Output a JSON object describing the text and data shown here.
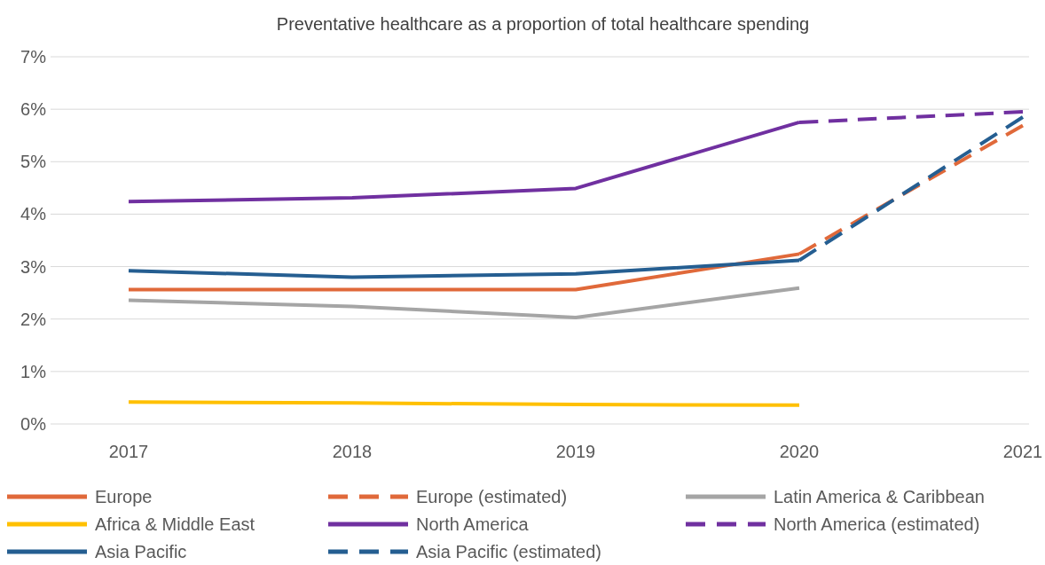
{
  "chart_data": {
    "type": "line",
    "title": "Preventative healthcare as a proportion of total healthcare spending",
    "categories": [
      "2017",
      "2018",
      "2019",
      "2020",
      "2021"
    ],
    "ylim": [
      0,
      7
    ],
    "yticks": [
      {
        "value": 0,
        "label": "0%"
      },
      {
        "value": 1,
        "label": "1%"
      },
      {
        "value": 2,
        "label": "2%"
      },
      {
        "value": 3,
        "label": "3%"
      },
      {
        "value": 4,
        "label": "4%"
      },
      {
        "value": 5,
        "label": "5%"
      },
      {
        "value": 6,
        "label": "6%"
      },
      {
        "value": 7,
        "label": "7%"
      }
    ],
    "grid": "y",
    "legend": "bottom",
    "marker": "none",
    "series": [
      {
        "name": "Europe",
        "color": "#e0693a",
        "values": [
          2.56,
          2.56,
          2.56,
          3.24,
          null
        ]
      },
      {
        "name": "Europe (estimated)",
        "color": "#e0693a",
        "line_style": "dashed",
        "values": [
          null,
          null,
          null,
          3.24,
          5.69
        ]
      },
      {
        "name": "Latin America & Caribbean",
        "color": "#a5a5a5",
        "values": [
          2.36,
          2.24,
          2.03,
          2.59,
          null
        ]
      },
      {
        "name": "Africa & Middle East",
        "color": "#ffc000",
        "values": [
          0.42,
          0.4,
          0.37,
          0.36,
          null
        ]
      },
      {
        "name": "North America",
        "color": "#7030a0",
        "values": [
          4.24,
          4.31,
          4.49,
          5.75,
          null
        ]
      },
      {
        "name": "North America (estimated)",
        "color": "#7030a0",
        "line_style": "dashed",
        "values": [
          null,
          null,
          null,
          5.75,
          5.95
        ]
      },
      {
        "name": "Asia Pacific",
        "color": "#255e91",
        "values": [
          2.92,
          2.8,
          2.86,
          3.12,
          null
        ]
      },
      {
        "name": "Asia Pacific (estimated)",
        "color": "#255e91",
        "line_style": "dashed",
        "values": [
          null,
          null,
          null,
          3.12,
          5.85
        ]
      }
    ]
  }
}
